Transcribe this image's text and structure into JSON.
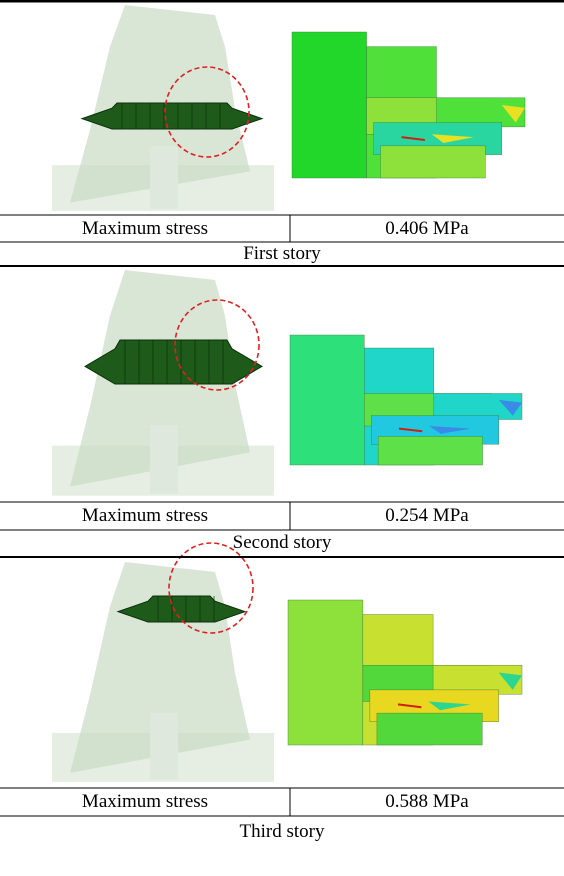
{
  "sections": [
    {
      "stress_label": "Maximum stress",
      "stress_value": "0.406 MPa",
      "caption": "First story"
    },
    {
      "stress_label": "Maximum stress",
      "stress_value": "0.254 MPa",
      "caption": "Second story"
    },
    {
      "stress_label": "Maximum stress",
      "stress_value": "0.588 MPa",
      "caption": "Third story"
    }
  ]
}
